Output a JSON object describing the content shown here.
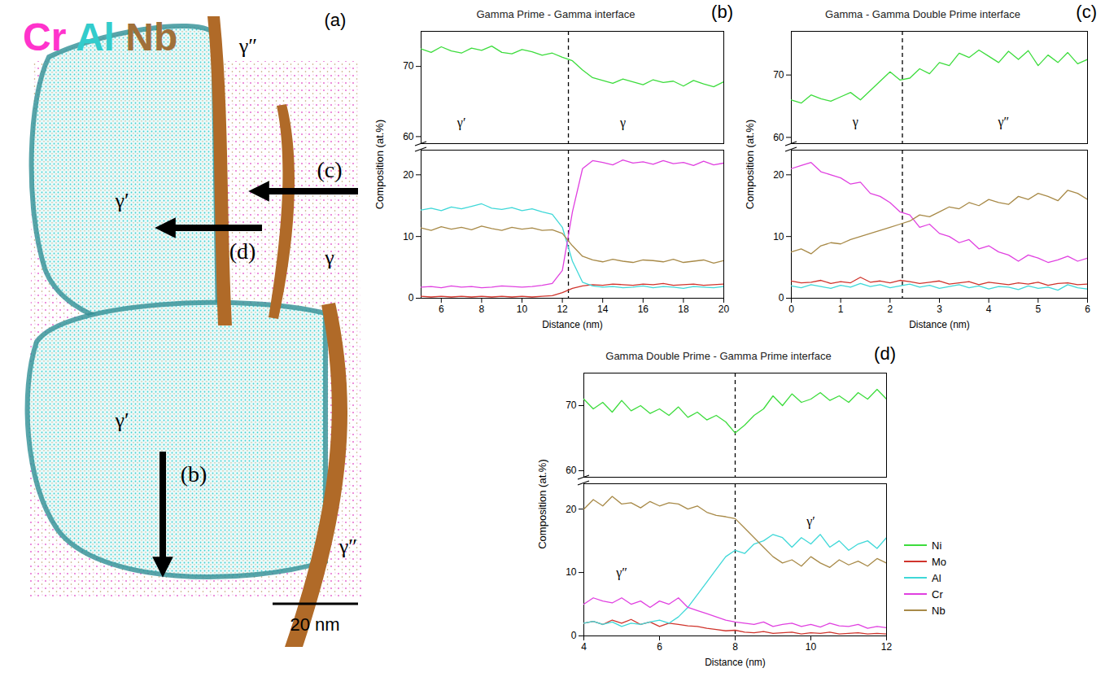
{
  "panel_a": {
    "letter": "(a)",
    "title": [
      {
        "text": "Cr",
        "color": "#ff33cc"
      },
      {
        "text": "Al",
        "color": "#33cccc"
      },
      {
        "text": "Nb",
        "color": "#a0703a"
      }
    ],
    "phase_labels": [
      "γ′",
      "γ′",
      "γ″",
      "γ″",
      "γ"
    ],
    "arrows": [
      "(b)",
      "(c)",
      "(d)"
    ],
    "scale_bar": "20 nm"
  },
  "chart_data": [
    {
      "type": "line",
      "letter": "(b)",
      "title": "Gamma Prime - Gamma interface",
      "x_label": "Distance (nm)",
      "y_label": "Composition (at.%)",
      "xlim": [
        5,
        20
      ],
      "xticks": [
        6,
        8,
        10,
        12,
        14,
        16,
        18,
        20
      ],
      "ylim": [
        [
          0,
          24
        ],
        [
          59,
          75
        ]
      ],
      "yticks": [
        0,
        10,
        20,
        60,
        70
      ],
      "interface": 12.3,
      "annotations": [
        {
          "text": "γ′",
          "x": 7,
          "y": 62
        },
        {
          "text": "γ",
          "x": 15,
          "y": 62
        }
      ],
      "x": [
        5,
        5.5,
        6,
        6.5,
        7,
        7.5,
        8,
        8.5,
        9,
        9.5,
        10,
        10.5,
        11,
        11.5,
        12,
        12.5,
        13,
        13.5,
        14,
        14.5,
        15,
        15.5,
        16,
        16.5,
        17,
        17.5,
        18,
        18.5,
        19,
        19.5,
        20
      ],
      "series": [
        {
          "name": "Ni",
          "color": "#3ddc3d",
          "values": [
            72.5,
            72.0,
            72.8,
            72.2,
            71.9,
            72.6,
            72.3,
            72.9,
            72.0,
            71.8,
            72.4,
            72.1,
            71.6,
            71.9,
            71.3,
            70.8,
            69.5,
            68.4,
            68.0,
            67.6,
            68.2,
            67.8,
            67.4,
            68.1,
            67.7,
            67.9,
            67.2,
            68.0,
            67.5,
            67.1,
            67.8
          ]
        },
        {
          "name": "Mo",
          "color": "#d0342c",
          "values": [
            0.3,
            0.2,
            0.3,
            0.2,
            0.3,
            0.2,
            0.3,
            0.2,
            0.3,
            0.2,
            0.3,
            0.2,
            0.3,
            0.4,
            0.9,
            1.6,
            2.0,
            2.2,
            2.1,
            2.3,
            2.2,
            2.1,
            2.3,
            2.2,
            2.4,
            2.1,
            2.2,
            2.3,
            2.1,
            2.2,
            2.3
          ]
        },
        {
          "name": "Al",
          "color": "#3fd8d8",
          "values": [
            14.3,
            14.6,
            14.2,
            14.8,
            14.5,
            14.9,
            15.3,
            14.6,
            14.4,
            14.7,
            14.2,
            14.5,
            14.0,
            13.6,
            11.5,
            6.0,
            2.6,
            2.0,
            1.8,
            1.9,
            1.7,
            1.8,
            2.0,
            1.7,
            1.9,
            1.8,
            1.6,
            1.9,
            1.8,
            1.7,
            1.9
          ]
        },
        {
          "name": "Cr",
          "color": "#e040e0",
          "values": [
            1.8,
            1.9,
            1.7,
            2.0,
            1.8,
            1.9,
            1.7,
            1.8,
            2.0,
            1.9,
            1.8,
            1.9,
            2.1,
            2.4,
            4.5,
            14.0,
            21.0,
            22.3,
            22.0,
            21.6,
            22.4,
            21.9,
            22.1,
            21.7,
            22.3,
            21.8,
            22.0,
            21.5,
            22.2,
            21.6,
            21.9
          ]
        },
        {
          "name": "Nb",
          "color": "#a88a48",
          "values": [
            11.4,
            11.0,
            11.6,
            11.2,
            11.5,
            11.1,
            11.7,
            11.3,
            11.0,
            11.5,
            11.2,
            11.4,
            11.0,
            11.1,
            10.5,
            8.5,
            6.8,
            6.2,
            5.9,
            6.3,
            6.0,
            5.8,
            6.2,
            6.1,
            5.9,
            6.3,
            5.8,
            6.0,
            6.2,
            5.7,
            6.1
          ]
        }
      ]
    },
    {
      "type": "line",
      "letter": "(c)",
      "title": "Gamma - Gamma Double Prime interface",
      "x_label": "Distance (nm)",
      "y_label": "Composition (at.%)",
      "xlim": [
        0,
        6
      ],
      "xticks": [
        0,
        1,
        2,
        3,
        4,
        5,
        6
      ],
      "ylim": [
        [
          0,
          24
        ],
        [
          59,
          77
        ]
      ],
      "yticks": [
        0,
        10,
        20,
        60,
        70
      ],
      "interface": 2.25,
      "annotations": [
        {
          "text": "γ",
          "x": 1.3,
          "y": 62.5
        },
        {
          "text": "γ″",
          "x": 4.3,
          "y": 62.5
        }
      ],
      "x": [
        0,
        0.2,
        0.4,
        0.6,
        0.8,
        1,
        1.2,
        1.4,
        1.6,
        1.8,
        2,
        2.2,
        2.4,
        2.6,
        2.8,
        3,
        3.2,
        3.4,
        3.6,
        3.8,
        4,
        4.2,
        4.4,
        4.6,
        4.8,
        5,
        5.2,
        5.4,
        5.6,
        5.8,
        6
      ],
      "series": [
        {
          "name": "Ni",
          "color": "#3ddc3d",
          "values": [
            66.0,
            65.5,
            66.8,
            66.2,
            65.8,
            66.5,
            67.2,
            66.0,
            67.5,
            69.0,
            70.5,
            69.2,
            69.5,
            71.0,
            70.2,
            72.0,
            71.5,
            73.5,
            72.8,
            74.0,
            73.0,
            72.0,
            73.8,
            72.5,
            73.9,
            71.5,
            73.2,
            72.0,
            73.6,
            71.8,
            72.5
          ]
        },
        {
          "name": "Mo",
          "color": "#d0342c",
          "values": [
            2.8,
            2.5,
            2.6,
            2.9,
            2.4,
            2.7,
            2.5,
            3.4,
            2.6,
            2.8,
            2.5,
            2.9,
            2.7,
            2.4,
            2.6,
            2.8,
            2.3,
            2.5,
            2.7,
            2.2,
            2.6,
            2.4,
            2.2,
            2.5,
            2.3,
            2.6,
            2.1,
            2.4,
            2.5,
            2.2,
            2.3
          ]
        },
        {
          "name": "Al",
          "color": "#3fd8d8",
          "values": [
            2.0,
            1.7,
            2.2,
            1.9,
            1.6,
            2.1,
            1.8,
            2.4,
            1.9,
            2.2,
            1.7,
            2.0,
            2.3,
            1.8,
            2.1,
            1.6,
            1.9,
            2.2,
            1.7,
            2.0,
            1.5,
            1.9,
            1.8,
            1.4,
            2.0,
            1.6,
            1.8,
            1.3,
            2.2,
            1.7,
            1.5
          ]
        },
        {
          "name": "Cr",
          "color": "#e040e0",
          "values": [
            21.0,
            21.5,
            22.0,
            20.5,
            20.0,
            19.5,
            18.5,
            18.8,
            17.0,
            16.5,
            15.5,
            14.0,
            13.5,
            11.5,
            12.0,
            10.5,
            10.0,
            9.0,
            9.5,
            8.0,
            8.5,
            7.5,
            7.0,
            6.0,
            7.0,
            6.5,
            5.8,
            6.2,
            6.8,
            6.0,
            6.5
          ]
        },
        {
          "name": "Nb",
          "color": "#a88a48",
          "values": [
            7.5,
            8.0,
            7.2,
            8.5,
            9.0,
            8.8,
            9.5,
            10.0,
            10.5,
            11.0,
            11.5,
            12.0,
            12.5,
            13.5,
            13.2,
            14.0,
            14.8,
            14.5,
            15.5,
            15.0,
            16.0,
            15.5,
            15.2,
            16.5,
            16.0,
            17.0,
            16.5,
            15.8,
            17.5,
            17.0,
            16.0
          ]
        }
      ]
    },
    {
      "type": "line",
      "letter": "(d)",
      "title": "Gamma Double Prime - Gamma Prime interface",
      "x_label": "Distance (nm)",
      "y_label": "Composition (at.%)",
      "xlim": [
        4,
        12
      ],
      "xticks": [
        4,
        6,
        8,
        10,
        12
      ],
      "ylim": [
        [
          0,
          24
        ],
        [
          59,
          75
        ]
      ],
      "yticks": [
        0,
        10,
        20,
        60,
        70
      ],
      "interface": 8,
      "legend": "right",
      "annotations": [
        {
          "text": "γ″",
          "x": 5,
          "y": 10
        },
        {
          "text": "γ′",
          "x": 10,
          "y": 18
        }
      ],
      "x": [
        4,
        4.25,
        4.5,
        4.75,
        5,
        5.25,
        5.5,
        5.75,
        6,
        6.25,
        6.5,
        6.75,
        7,
        7.25,
        7.5,
        7.75,
        8,
        8.25,
        8.5,
        8.75,
        9,
        9.25,
        9.5,
        9.75,
        10,
        10.25,
        10.5,
        10.75,
        11,
        11.25,
        11.5,
        11.75,
        12
      ],
      "series": [
        {
          "name": "Ni",
          "color": "#3ddc3d",
          "values": [
            71.0,
            69.5,
            70.5,
            69.0,
            70.8,
            69.2,
            70.0,
            68.8,
            69.5,
            68.5,
            69.8,
            68.2,
            69.0,
            67.8,
            68.5,
            67.5,
            65.8,
            67.0,
            68.5,
            69.5,
            71.5,
            70.0,
            71.8,
            70.5,
            71.0,
            72.0,
            70.8,
            71.5,
            70.5,
            72.0,
            71.0,
            72.5,
            71.0
          ]
        },
        {
          "name": "Mo",
          "color": "#d0342c",
          "values": [
            2.0,
            2.3,
            1.8,
            2.5,
            2.0,
            2.6,
            1.8,
            2.2,
            1.5,
            2.0,
            1.8,
            1.6,
            1.5,
            1.2,
            1.0,
            0.8,
            0.9,
            0.6,
            0.5,
            0.7,
            0.4,
            0.5,
            0.6,
            0.3,
            0.5,
            0.4,
            0.6,
            0.3,
            0.4,
            0.5,
            0.3,
            0.4,
            0.3
          ]
        },
        {
          "name": "Al",
          "color": "#3fd8d8",
          "values": [
            2.0,
            2.3,
            1.8,
            2.2,
            1.5,
            2.0,
            1.8,
            2.2,
            2.5,
            2.0,
            3.0,
            4.5,
            6.5,
            8.5,
            10.5,
            12.5,
            13.5,
            13.0,
            14.5,
            15.0,
            16.0,
            15.5,
            14.0,
            15.5,
            14.5,
            16.0,
            14.0,
            15.0,
            13.5,
            14.5,
            15.0,
            13.8,
            15.5
          ]
        },
        {
          "name": "Cr",
          "color": "#e040e0",
          "values": [
            5.0,
            6.0,
            5.5,
            5.2,
            6.0,
            5.0,
            5.5,
            4.5,
            5.5,
            5.0,
            6.0,
            4.5,
            4.0,
            3.5,
            3.0,
            2.5,
            2.2,
            2.0,
            1.8,
            2.2,
            1.5,
            1.8,
            2.0,
            1.5,
            1.8,
            1.4,
            2.0,
            1.6,
            1.5,
            1.8,
            1.2,
            1.5,
            1.3
          ]
        },
        {
          "name": "Nb",
          "color": "#a88a48",
          "values": [
            20.0,
            21.5,
            20.5,
            22.0,
            20.8,
            21.0,
            20.2,
            21.2,
            20.5,
            21.0,
            20.8,
            20.0,
            20.5,
            19.5,
            19.0,
            18.8,
            18.5,
            17.0,
            15.5,
            14.0,
            12.5,
            11.5,
            12.0,
            11.0,
            12.5,
            11.5,
            10.8,
            12.0,
            11.2,
            11.8,
            11.0,
            12.2,
            11.5
          ]
        }
      ]
    }
  ]
}
